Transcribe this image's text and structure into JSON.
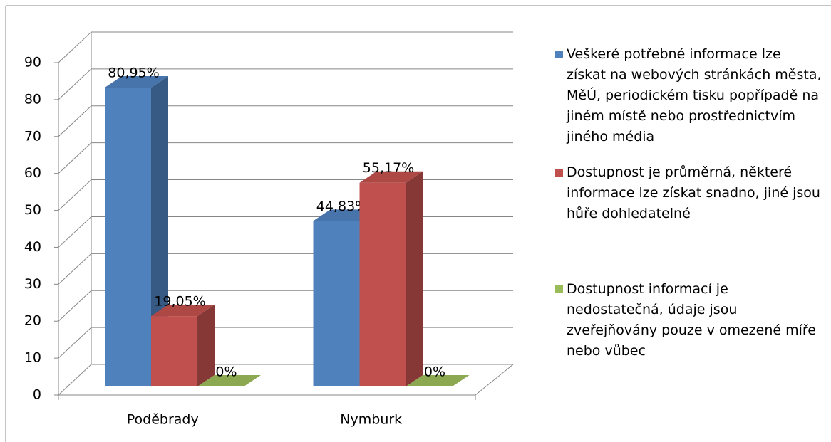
{
  "chart_data": {
    "type": "bar3d",
    "categories": [
      "Poděbrady",
      "Nymburk"
    ],
    "series": [
      {
        "name": "Veškeré potřebné informace lze získat na webových stránkách města, MěÚ, periodickém tisku popřípadě na jiném místě nebo prostřednictvím jiného média",
        "color": "#4f81bd",
        "values": [
          80.95,
          44.83
        ],
        "value_labels": [
          "80,95%",
          "44,83%"
        ]
      },
      {
        "name": "Dostupnost je průměrná, některé informace lze získat snadno, jiné jsou hůře dohledatelné",
        "color": "#c0504d",
        "values": [
          19.05,
          55.17
        ],
        "value_labels": [
          "19,05%",
          "55,17%"
        ]
      },
      {
        "name": "Dostupnost informací je nedostatečná, údaje jsou zveřejňovány pouze v omezené míře nebo vůbec",
        "color": "#9bbb59",
        "values": [
          0,
          0
        ],
        "value_labels": [
          "0%",
          "0%"
        ]
      }
    ],
    "ylim": [
      0,
      90
    ],
    "yticks": [
      0,
      10,
      20,
      30,
      40,
      50,
      60,
      70,
      80,
      90
    ],
    "grid": true,
    "legend": "right"
  }
}
